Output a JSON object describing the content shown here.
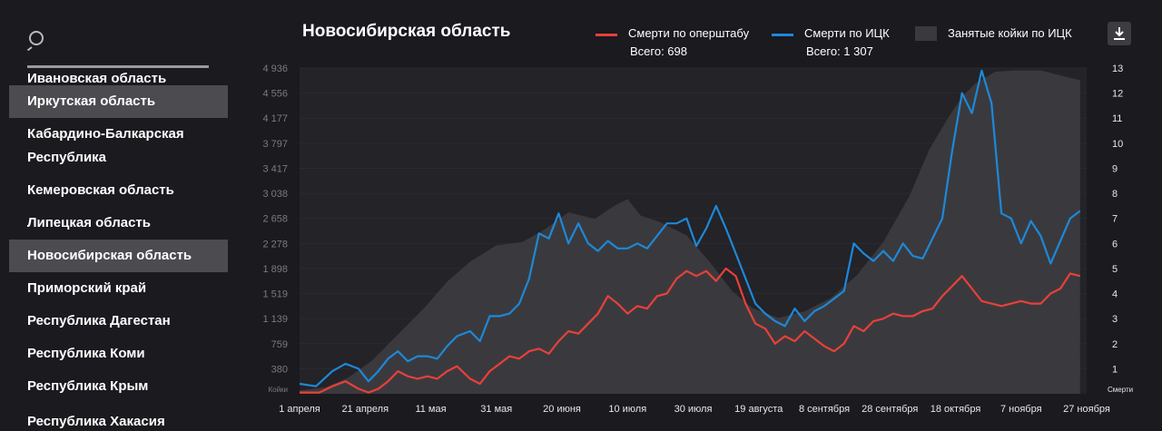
{
  "sidebar": {
    "regions": [
      {
        "label": "Ивановская область",
        "active": false
      },
      {
        "label": "Иркутская область",
        "active": true
      },
      {
        "label": "Кабардино-Балкарская Республика",
        "active": false
      },
      {
        "label": "Кемеровская область",
        "active": false
      },
      {
        "label": "Липецкая область",
        "active": false
      },
      {
        "label": "Новосибирская область",
        "active": true
      },
      {
        "label": "Приморский край",
        "active": false
      },
      {
        "label": "Республика Дагестан",
        "active": false
      },
      {
        "label": "Республика Коми",
        "active": false
      },
      {
        "label": "Республика Крым",
        "active": false
      },
      {
        "label": "Республика Хакасия",
        "active": false
      }
    ]
  },
  "legend": {
    "red_label": "Смерти по оперштабу",
    "red_total": "Всего: 698",
    "blue_label": "Смерти по ИЦК",
    "blue_total": "Всего: 1 307",
    "area_label": "Занятые койки по ИЦК"
  },
  "colors": {
    "red": "#e8403a",
    "blue": "#1e88d8",
    "area": "#3a3a3e",
    "grid": "#2a2a30",
    "tick": "#7a7a80"
  },
  "chart_data": {
    "type": "line",
    "title": "Новосибирская область",
    "left_axis": {
      "label": "Койки",
      "ticks": [
        "4 936",
        "4 556",
        "4 177",
        "3 797",
        "3 417",
        "3 038",
        "2 658",
        "2 278",
        "1 898",
        "1 519",
        "1 139",
        "759",
        "380"
      ],
      "ylim": [
        0,
        4936
      ]
    },
    "right_axis": {
      "label": "Смерти",
      "ticks": [
        "13",
        "12",
        "11",
        "10",
        "9",
        "8",
        "7",
        "6",
        "5",
        "4",
        "3",
        "2",
        "1"
      ],
      "ylim": [
        0,
        13
      ]
    },
    "x_ticks": [
      "1 апреля",
      "21 апреля",
      "11 мая",
      "31 мая",
      "20 июня",
      "10 июля",
      "30 июля",
      "19 августа",
      "8 сентября",
      "28 сентября",
      "18 октября",
      "7 ноября",
      "27 ноября"
    ],
    "x_range_days": [
      0,
      240
    ],
    "series": [
      {
        "name": "Занятые койки по ИЦК",
        "axis": "left",
        "kind": "area",
        "points": [
          [
            0,
            50
          ],
          [
            8,
            100
          ],
          [
            15,
            250
          ],
          [
            22,
            500
          ],
          [
            30,
            900
          ],
          [
            38,
            1300
          ],
          [
            45,
            1700
          ],
          [
            52,
            2000
          ],
          [
            60,
            2250
          ],
          [
            68,
            2300
          ],
          [
            75,
            2500
          ],
          [
            82,
            2750
          ],
          [
            90,
            2650
          ],
          [
            96,
            2850
          ],
          [
            100,
            2950
          ],
          [
            104,
            2700
          ],
          [
            110,
            2600
          ],
          [
            118,
            2400
          ],
          [
            125,
            2000
          ],
          [
            132,
            1550
          ],
          [
            138,
            1300
          ],
          [
            146,
            1150
          ],
          [
            154,
            1250
          ],
          [
            162,
            1450
          ],
          [
            170,
            1800
          ],
          [
            178,
            2300
          ],
          [
            186,
            3000
          ],
          [
            192,
            3700
          ],
          [
            198,
            4200
          ],
          [
            202,
            4500
          ],
          [
            206,
            4700
          ],
          [
            212,
            4880
          ],
          [
            218,
            4900
          ],
          [
            226,
            4900
          ],
          [
            234,
            4800
          ],
          [
            238,
            4750
          ]
        ]
      },
      {
        "name": "Смерти по ИЦК",
        "axis": "right",
        "kind": "line",
        "points": [
          [
            0,
            0.4
          ],
          [
            5,
            0.3
          ],
          [
            10,
            0.9
          ],
          [
            14,
            1.2
          ],
          [
            18,
            1.0
          ],
          [
            21,
            0.5
          ],
          [
            24,
            0.9
          ],
          [
            27,
            1.4
          ],
          [
            30,
            1.7
          ],
          [
            33,
            1.3
          ],
          [
            36,
            1.5
          ],
          [
            39,
            1.5
          ],
          [
            42,
            1.4
          ],
          [
            45,
            1.9
          ],
          [
            48,
            2.3
          ],
          [
            52,
            2.5
          ],
          [
            55,
            2.1
          ],
          [
            58,
            3.1
          ],
          [
            61,
            3.1
          ],
          [
            64,
            3.2
          ],
          [
            67,
            3.6
          ],
          [
            70,
            4.6
          ],
          [
            73,
            6.4
          ],
          [
            76,
            6.2
          ],
          [
            79,
            7.2
          ],
          [
            82,
            6.0
          ],
          [
            85,
            6.8
          ],
          [
            88,
            6.0
          ],
          [
            91,
            5.7
          ],
          [
            94,
            6.1
          ],
          [
            97,
            5.8
          ],
          [
            100,
            5.8
          ],
          [
            103,
            6.0
          ],
          [
            106,
            5.8
          ],
          [
            109,
            6.3
          ],
          [
            112,
            6.8
          ],
          [
            115,
            6.8
          ],
          [
            118,
            7.0
          ],
          [
            121,
            5.9
          ],
          [
            124,
            6.6
          ],
          [
            127,
            7.5
          ],
          [
            130,
            6.6
          ],
          [
            133,
            5.6
          ],
          [
            136,
            4.6
          ],
          [
            139,
            3.6
          ],
          [
            142,
            3.2
          ],
          [
            145,
            2.9
          ],
          [
            148,
            2.7
          ],
          [
            151,
            3.4
          ],
          [
            154,
            2.9
          ],
          [
            157,
            3.3
          ],
          [
            160,
            3.5
          ],
          [
            163,
            3.8
          ],
          [
            166,
            4.1
          ],
          [
            169,
            6.0
          ],
          [
            172,
            5.6
          ],
          [
            175,
            5.3
          ],
          [
            178,
            5.7
          ],
          [
            181,
            5.3
          ],
          [
            184,
            6.0
          ],
          [
            187,
            5.5
          ],
          [
            190,
            5.4
          ],
          [
            193,
            6.2
          ],
          [
            196,
            7.0
          ],
          [
            199,
            9.7
          ],
          [
            202,
            12.0
          ],
          [
            205,
            11.2
          ],
          [
            208,
            12.9
          ],
          [
            211,
            11.6
          ],
          [
            214,
            7.2
          ],
          [
            217,
            7.0
          ],
          [
            220,
            6.0
          ],
          [
            223,
            6.9
          ],
          [
            226,
            6.3
          ],
          [
            229,
            5.2
          ],
          [
            232,
            6.1
          ],
          [
            235,
            7.0
          ],
          [
            238,
            7.3
          ]
        ]
      },
      {
        "name": "Смерти по оперштабу",
        "axis": "right",
        "kind": "line",
        "points": [
          [
            0,
            0.05
          ],
          [
            6,
            0.05
          ],
          [
            10,
            0.3
          ],
          [
            14,
            0.5
          ],
          [
            18,
            0.2
          ],
          [
            21,
            0.05
          ],
          [
            24,
            0.2
          ],
          [
            27,
            0.5
          ],
          [
            30,
            0.9
          ],
          [
            33,
            0.7
          ],
          [
            36,
            0.6
          ],
          [
            39,
            0.7
          ],
          [
            42,
            0.6
          ],
          [
            45,
            0.9
          ],
          [
            48,
            1.1
          ],
          [
            52,
            0.6
          ],
          [
            55,
            0.4
          ],
          [
            58,
            0.9
          ],
          [
            61,
            1.2
          ],
          [
            64,
            1.5
          ],
          [
            67,
            1.4
          ],
          [
            70,
            1.7
          ],
          [
            73,
            1.8
          ],
          [
            76,
            1.6
          ],
          [
            79,
            2.1
          ],
          [
            82,
            2.5
          ],
          [
            85,
            2.4
          ],
          [
            88,
            2.8
          ],
          [
            91,
            3.2
          ],
          [
            94,
            3.9
          ],
          [
            97,
            3.6
          ],
          [
            100,
            3.2
          ],
          [
            103,
            3.5
          ],
          [
            106,
            3.4
          ],
          [
            109,
            3.9
          ],
          [
            112,
            4.0
          ],
          [
            115,
            4.6
          ],
          [
            118,
            4.9
          ],
          [
            121,
            4.7
          ],
          [
            124,
            4.9
          ],
          [
            127,
            4.5
          ],
          [
            130,
            5.0
          ],
          [
            133,
            4.7
          ],
          [
            136,
            3.6
          ],
          [
            139,
            2.8
          ],
          [
            142,
            2.6
          ],
          [
            145,
            2.0
          ],
          [
            148,
            2.3
          ],
          [
            151,
            2.1
          ],
          [
            154,
            2.5
          ],
          [
            157,
            2.2
          ],
          [
            160,
            1.9
          ],
          [
            163,
            1.7
          ],
          [
            166,
            2.0
          ],
          [
            169,
            2.7
          ],
          [
            172,
            2.5
          ],
          [
            175,
            2.9
          ],
          [
            178,
            3.0
          ],
          [
            181,
            3.2
          ],
          [
            184,
            3.1
          ],
          [
            187,
            3.1
          ],
          [
            190,
            3.3
          ],
          [
            193,
            3.4
          ],
          [
            196,
            3.9
          ],
          [
            199,
            4.3
          ],
          [
            202,
            4.7
          ],
          [
            205,
            4.2
          ],
          [
            208,
            3.7
          ],
          [
            211,
            3.6
          ],
          [
            214,
            3.5
          ],
          [
            217,
            3.6
          ],
          [
            220,
            3.7
          ],
          [
            223,
            3.6
          ],
          [
            226,
            3.6
          ],
          [
            229,
            4.0
          ],
          [
            232,
            4.2
          ],
          [
            235,
            4.8
          ],
          [
            238,
            4.7
          ]
        ]
      }
    ]
  }
}
